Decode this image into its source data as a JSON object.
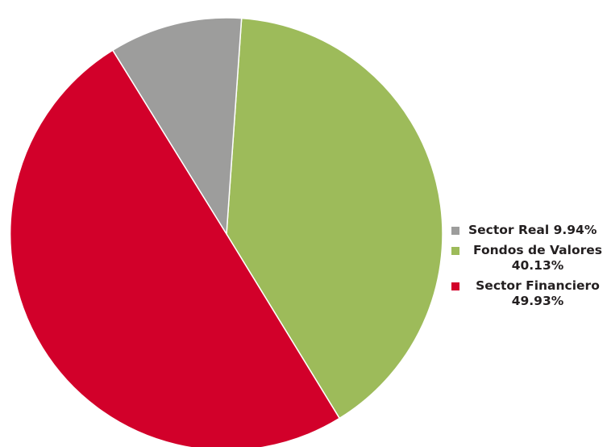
{
  "chart_data": {
    "type": "pie",
    "title": "",
    "start_direction": "clockwise",
    "slices": [
      {
        "label": "Sector Real",
        "value": 9.94,
        "display": "9.94%",
        "color": "#9d9d9c"
      },
      {
        "label": "Fondos de Valores",
        "value": 40.13,
        "display": "40.13%",
        "color": "#9dbb5a"
      },
      {
        "label": "Sector Financiero",
        "value": 49.93,
        "display": "49.93%",
        "color": "#d2002a"
      }
    ],
    "legend": {
      "placement": "right",
      "items": [
        {
          "text": "Sector Real 9.94%",
          "color": "#9d9d9c"
        },
        {
          "text": "Fondos de Valores\n40.13%",
          "color": "#9dbb5a"
        },
        {
          "text": "Sector Financiero\n49.93%",
          "color": "#d2002a"
        }
      ]
    }
  }
}
